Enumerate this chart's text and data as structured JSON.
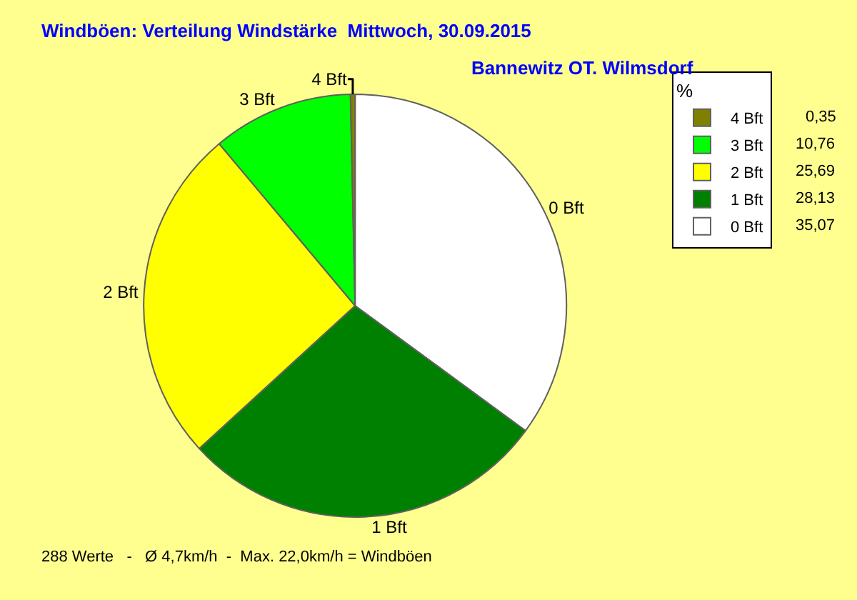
{
  "chart_data": {
    "type": "pie",
    "title": "Windböen: Verteilung Windstärke  Mittwoch, 30.09.2015",
    "subtitle": "Bannewitz OT. Wilmsdorf",
    "categories": [
      "0 Bft",
      "1 Bft",
      "2 Bft",
      "3 Bft",
      "4 Bft"
    ],
    "values": [
      35.07,
      28.13,
      25.69,
      10.76,
      0.35
    ],
    "value_labels": [
      "35,07",
      "28,13",
      "25,69",
      "10,76",
      "0,35"
    ],
    "colors": [
      "#ffffff",
      "#008000",
      "#ffff00",
      "#00ff00",
      "#808000"
    ],
    "legend": "top right",
    "legend_title": "%",
    "annotations": [
      "288 Werte   -   Ø 4,7km/h  -  Max. 22,0km/h = Windböen"
    ]
  }
}
